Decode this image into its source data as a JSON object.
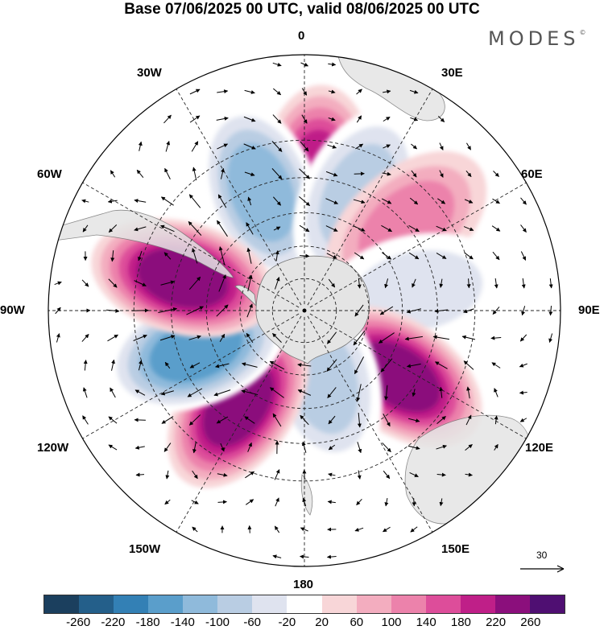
{
  "header": {
    "title": "Base 07/06/2025 00 UTC, valid 08/06/2025 00 UTC",
    "brand": "MODES",
    "brand_mark": "©"
  },
  "map": {
    "projection": "south-polar-stereographic",
    "center_meridian_top": "0",
    "longitude_labels": {
      "top": "0",
      "bottom": "180",
      "right": "90E",
      "left": "90W",
      "ne_upper": "30E",
      "ne_lower": "60E",
      "se_upper": "120E",
      "se_lower": "150E",
      "nw_upper": "30W",
      "nw_lower": "60W",
      "sw_upper": "120W",
      "sw_lower": "150W"
    },
    "anomaly_centers": [
      {
        "lon": 5,
        "lat": -50,
        "value": 220
      },
      {
        "lon": -20,
        "lat": -52,
        "value": -180
      },
      {
        "lon": 25,
        "lat": -52,
        "value": -140
      },
      {
        "lon": 50,
        "lat": -50,
        "value": 120
      },
      {
        "lon": 80,
        "lat": -55,
        "value": -110
      },
      {
        "lon": 125,
        "lat": -55,
        "value": 240
      },
      {
        "lon": 165,
        "lat": -68,
        "value": -120
      },
      {
        "lon": -145,
        "lat": -55,
        "value": 240
      },
      {
        "lon": -110,
        "lat": -55,
        "value": -220
      },
      {
        "lon": -75,
        "lat": -52,
        "value": 260
      }
    ]
  },
  "vector_reference": {
    "label": "30"
  },
  "colorbar": {
    "ticks": [
      "-260",
      "-220",
      "-180",
      "-140",
      "-100",
      "-60",
      "-20",
      "20",
      "60",
      "100",
      "140",
      "180",
      "220",
      "260"
    ],
    "colors": [
      "#1b3f5e",
      "#245f8a",
      "#3380b5",
      "#5a9ecb",
      "#8fbadb",
      "#b9cde3",
      "#dfe3ef",
      "#ffffff",
      "#f8d6d8",
      "#f3adbf",
      "#ec82ab",
      "#dd4d9a",
      "#bf1f88",
      "#8b0f7c",
      "#4f0f72"
    ]
  }
}
